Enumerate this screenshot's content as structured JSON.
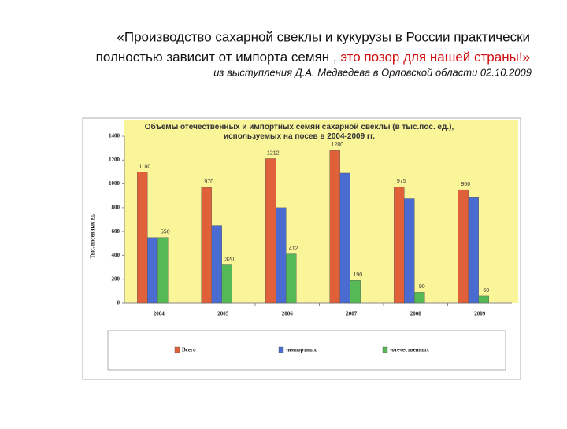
{
  "slide": {
    "quote_line1": "«Производство сахарной свеклы и кукурузы в России практически",
    "quote_line2": "полностью зависит от импорта семян , ",
    "quote_red": "это позор для нашей страны!»",
    "source": "из выступления Д.А. Медведева в Орловской области 02.10.2009"
  },
  "chart_data": {
    "type": "bar",
    "title": "Объемы отечественных и импортных семян сахарной свеклы (в тыс.пос. ед.), используемых на посев в 2004-2009 гг.",
    "y_label": "Тыс. посевных ед.",
    "categories": [
      "2004",
      "2005",
      "2006",
      "2007",
      "2008",
      "2009"
    ],
    "series": [
      {
        "name": "Всего",
        "color": "#e0603a",
        "values": [
          1100,
          970,
          1212,
          1280,
          975,
          950
        ],
        "labels": true
      },
      {
        "name": "-импортных",
        "color": "#4a6cd0",
        "values": [
          550,
          650,
          800,
          1090,
          875,
          890
        ],
        "labels": false
      },
      {
        "name": "-отечественных",
        "color": "#55b955",
        "values": [
          550,
          320,
          412,
          190,
          90,
          60
        ],
        "labels": true
      }
    ],
    "ylim": [
      0,
      1400
    ],
    "yticks": [
      0,
      200,
      400,
      600,
      800,
      1000,
      1200,
      1400
    ],
    "grid": false,
    "legend": "bottom"
  }
}
